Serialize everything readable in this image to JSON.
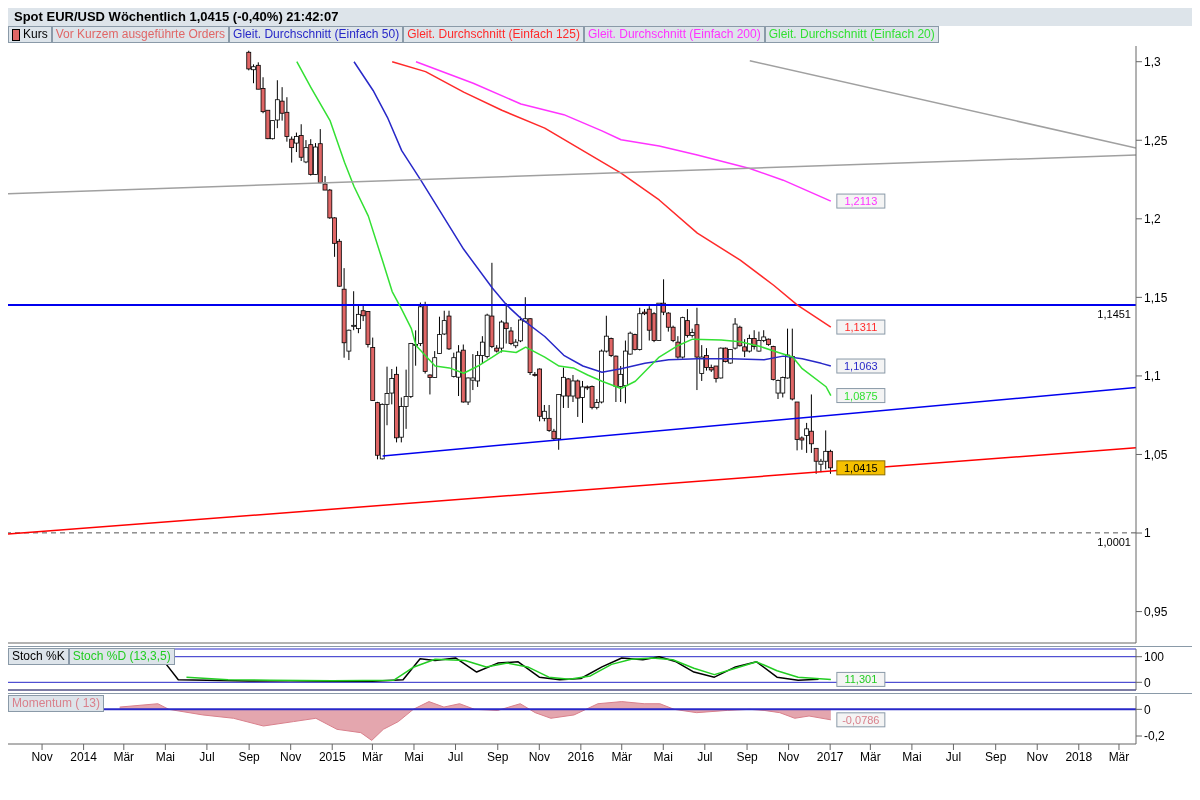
{
  "chart_data": [
    {
      "type": "candlestick",
      "title": "Spot EUR/USD   Wöchentlich   1,0415 (-0,40%)   21:42:07",
      "legend": "top left",
      "tick_labels": "y",
      "xlim": [
        "2013-09-12",
        "2018-03-26"
      ],
      "ylim": [
        0.93,
        1.31
      ],
      "yticks": [
        {
          "value": 0.95,
          "label": "0,95"
        },
        1,
        {
          "value": 1.05,
          "label": "1,05"
        },
        {
          "value": 1.1,
          "label": "1,1"
        },
        {
          "value": 1.15,
          "label": "1,15"
        },
        {
          "value": 1.2,
          "label": "1,2"
        },
        {
          "value": 1.25,
          "label": "1,25"
        },
        {
          "value": 1.3,
          "label": "1,3"
        }
      ],
      "ref_lines": [
        {
          "axis": "y",
          "value": 1.1451,
          "label": "1,1451",
          "color": "#0000ee"
        },
        {
          "axis": "y",
          "value": 1.0001,
          "label": "1,0001",
          "color": "#555555",
          "line_style": "dashed"
        }
      ],
      "annotations": [
        "Vor Kurzem ausgeführte Orders",
        {
          "text": "1,2113",
          "x": "2017-01-02",
          "y": 1.2113
        },
        {
          "text": "1,1311",
          "x": "2017-01-02",
          "y": 1.1311
        },
        {
          "text": "1,1063",
          "x": "2017-01-02",
          "y": 1.1063
        },
        {
          "text": "1,0875",
          "x": "2017-01-02",
          "y": 1.0875
        },
        {
          "text": "1,0415",
          "x": "2017-01-02",
          "y": 1.0415
        }
      ],
      "series": [
        {
          "name": "Kurs",
          "colors": [
            "#e06666",
            "#ffffff",
            "#e06666",
            "#e06666",
            "#e06666",
            "#ffffff",
            "#ffffff",
            "#e06666",
            "#e06666",
            "#e06666",
            "#ffffff",
            "#e06666",
            "#ffffff",
            "#e06666",
            "#ffffff",
            "#e06666",
            "#e06666",
            "#e06666",
            "#e06666",
            "#e06666",
            "#e06666",
            "#ffffff",
            "#ffffff",
            "#ffffff",
            "#e06666",
            "#e06666",
            "#e06666",
            "#e06666",
            "#ffffff",
            "#ffffff",
            "#ffffff",
            "#e06666",
            "#ffffff",
            "#ffffff",
            "#ffffff",
            "#ffffff",
            "#ffffff",
            "#e06666",
            "#e06666",
            "#ffffff",
            "#ffffff",
            "#ffffff",
            "#e06666",
            "#ffffff",
            "#ffffff",
            "#e06666",
            "#ffffff",
            "#ffffff",
            "#ffffff",
            "#ffffff",
            "#ffffff",
            "#e06666",
            "#e06666",
            "#ffffff",
            "#e06666",
            "#e06666",
            "#ffffff",
            "#ffffff",
            "#ffffff",
            "#e06666",
            "#e06666",
            "#e06666",
            "#ffffff",
            "#e06666",
            "#e06666",
            "#ffffff",
            "#ffffff",
            "#e06666",
            "#ffffff",
            "#e06666",
            "#ffffff",
            "#e06666",
            "#e06666",
            "#ffffff",
            "#ffffff",
            "#ffffff",
            "#e06666",
            "#e06666",
            "#ffffff",
            "#ffffff",
            "#ffffff",
            "#e06666",
            "#ffffff",
            "#e06666",
            "#e06666",
            "#e06666",
            "#ffffff",
            "#e06666",
            "#e06666",
            "#e06666",
            "#e06666",
            "#ffffff",
            "#e06666",
            "#ffffff",
            "#e06666",
            "#ffffff",
            "#e06666",
            "#e06666",
            "#e06666",
            "#ffffff",
            "#e06666",
            "#ffffff",
            "#ffffff",
            "#e06666",
            "#e06666",
            "#ffffff",
            "#e06666",
            "#ffffff",
            "#ffffff",
            "#e06666",
            "#e06666",
            "#ffffff",
            "#ffffff",
            "#ffffff",
            "#e06666",
            "#e06666",
            "#e06666",
            "#ffffff",
            "#e06666",
            "#e06666",
            "#ffffff",
            "#ffffff",
            "#e06666"
          ],
          "x": [
            "2014-09-01",
            "2014-09-08",
            "2014-09-15",
            "2014-09-22",
            "2014-09-29",
            "2014-10-06",
            "2014-10-13",
            "2014-10-20",
            "2014-10-27",
            "2014-11-03",
            "2014-11-10",
            "2014-11-17",
            "2014-11-24",
            "2014-12-01",
            "2014-12-08",
            "2014-12-15",
            "2014-12-22",
            "2014-12-29",
            "2015-01-05",
            "2015-01-12",
            "2015-01-19",
            "2015-01-26",
            "2015-02-02",
            "2015-02-09",
            "2015-02-16",
            "2015-02-23",
            "2015-03-02",
            "2015-03-09",
            "2015-03-16",
            "2015-03-23",
            "2015-03-30",
            "2015-04-06",
            "2015-04-13",
            "2015-04-20",
            "2015-04-27",
            "2015-05-04",
            "2015-05-11",
            "2015-05-18",
            "2015-05-25",
            "2015-06-01",
            "2015-06-08",
            "2015-06-15",
            "2015-06-22",
            "2015-06-29",
            "2015-07-06",
            "2015-07-13",
            "2015-07-20",
            "2015-07-27",
            "2015-08-03",
            "2015-08-10",
            "2015-08-17",
            "2015-08-24",
            "2015-08-31",
            "2015-09-07",
            "2015-09-14",
            "2015-09-21",
            "2015-09-28",
            "2015-10-05",
            "2015-10-12",
            "2015-10-19",
            "2015-10-26",
            "2015-11-02",
            "2015-11-09",
            "2015-11-16",
            "2015-11-23",
            "2015-11-30",
            "2015-12-07",
            "2015-12-14",
            "2015-12-21",
            "2015-12-28",
            "2016-01-04",
            "2016-01-11",
            "2016-01-18",
            "2016-01-25",
            "2016-02-01",
            "2016-02-08",
            "2016-02-15",
            "2016-02-22",
            "2016-02-29",
            "2016-03-07",
            "2016-03-14",
            "2016-03-21",
            "2016-03-28",
            "2016-04-04",
            "2016-04-11",
            "2016-04-18",
            "2016-04-25",
            "2016-05-02",
            "2016-05-09",
            "2016-05-16",
            "2016-05-23",
            "2016-05-30",
            "2016-06-06",
            "2016-06-13",
            "2016-06-20",
            "2016-06-27",
            "2016-07-04",
            "2016-07-11",
            "2016-07-18",
            "2016-07-25",
            "2016-08-01",
            "2016-08-08",
            "2016-08-15",
            "2016-08-22",
            "2016-08-29",
            "2016-09-05",
            "2016-09-12",
            "2016-09-19",
            "2016-09-26",
            "2016-10-03",
            "2016-10-10",
            "2016-10-17",
            "2016-10-24",
            "2016-10-31",
            "2016-11-07",
            "2016-11-14",
            "2016-11-21",
            "2016-11-28",
            "2016-12-05",
            "2016-12-12",
            "2016-12-19",
            "2016-12-26",
            "2017-01-02"
          ],
          "ohlc": [
            [
              1.306,
              1.307,
              1.2945,
              1.2954
            ],
            [
              1.2949,
              1.2983,
              1.2863,
              1.2968
            ],
            [
              1.2977,
              1.2996,
              1.2825,
              1.2825
            ],
            [
              1.283,
              1.2901,
              1.2672,
              1.2682
            ],
            [
              1.2691,
              1.2691,
              1.2507,
              1.251
            ],
            [
              1.251,
              1.2625,
              1.2505,
              1.2625
            ],
            [
              1.2629,
              1.2882,
              1.2577,
              1.2758
            ],
            [
              1.2749,
              1.2838,
              1.2625,
              1.2672
            ],
            [
              1.2678,
              1.2774,
              1.2491,
              1.2524
            ],
            [
              1.2507,
              1.2524,
              1.2358,
              1.2453
            ],
            [
              1.2482,
              1.2549,
              1.2425,
              1.2524
            ],
            [
              1.253,
              1.2602,
              1.2368,
              1.2392
            ],
            [
              1.2362,
              1.2501,
              1.2354,
              1.2453
            ],
            [
              1.2472,
              1.2507,
              1.2275,
              1.2282
            ],
            [
              1.2282,
              1.2482,
              1.228,
              1.2457
            ],
            [
              1.2478,
              1.2571,
              1.2226,
              1.223
            ],
            [
              1.2221,
              1.2272,
              1.2183,
              1.2183
            ],
            [
              1.2183,
              1.219,
              1.2,
              1.2006
            ],
            [
              1.2006,
              1.201,
              1.1758,
              1.1844
            ],
            [
              1.1857,
              1.1872,
              1.1568,
              1.1571
            ],
            [
              1.1552,
              1.1686,
              1.1116,
              1.1211
            ],
            [
              1.1158,
              1.1295,
              1.1101,
              1.1291
            ],
            [
              1.1316,
              1.1539,
              1.1291,
              1.1322
            ],
            [
              1.1301,
              1.1453,
              1.1272,
              1.1392
            ],
            [
              1.1415,
              1.1453,
              1.1349,
              1.1383
            ],
            [
              1.141,
              1.1412,
              1.1181,
              1.12
            ],
            [
              1.1181,
              1.1244,
              1.0844,
              1.0844
            ],
            [
              1.083,
              1.0835,
              1.0469,
              1.0495
            ],
            [
              1.0472,
              1.0825,
              1.0468,
              1.0819
            ],
            [
              1.0819,
              1.1059,
              1.0686,
              1.0888
            ],
            [
              1.0891,
              1.1044,
              1.0819,
              1.0983
            ],
            [
              1.101,
              1.1059,
              1.0577,
              1.0606
            ],
            [
              1.061,
              1.0863,
              1.0577,
              1.0806
            ],
            [
              1.0806,
              1.104,
              1.0663,
              1.0869
            ],
            [
              1.0869,
              1.121,
              1.0859,
              1.1206
            ],
            [
              1.12,
              1.129,
              1.1065,
              1.12
            ],
            [
              1.1206,
              1.1467,
              1.119,
              1.144
            ],
            [
              1.1448,
              1.1472,
              1.1015,
              1.1029
            ],
            [
              1.1006,
              1.101,
              1.0882,
              1.099
            ],
            [
              1.099,
              1.1158,
              1.0988,
              1.1116
            ],
            [
              1.1143,
              1.1377,
              1.114,
              1.1263
            ],
            [
              1.1267,
              1.1415,
              1.126,
              1.1352
            ],
            [
              1.1381,
              1.1415,
              1.1165,
              1.1172
            ],
            [
              1.0996,
              1.1148,
              1.099,
              1.1116
            ],
            [
              1.0992,
              1.1196,
              1.0872,
              1.1152
            ],
            [
              1.1164,
              1.12,
              1.083,
              1.0834
            ],
            [
              1.0834,
              1.099,
              1.0815,
              1.0987
            ],
            [
              1.0973,
              1.1139,
              1.091,
              1.0987
            ],
            [
              1.0968,
              1.1158,
              1.093,
              1.113
            ],
            [
              1.113,
              1.1253,
              1.1082,
              1.1215
            ],
            [
              1.1124,
              1.1396,
              1.1111,
              1.1387
            ],
            [
              1.1381,
              1.172,
              1.1177,
              1.1187
            ],
            [
              1.1177,
              1.1196,
              1.1149,
              1.1158
            ],
            [
              1.1177,
              1.1354,
              1.1149,
              1.1343
            ],
            [
              1.1337,
              1.1463,
              1.1206,
              1.1301
            ],
            [
              1.1286,
              1.1311,
              1.1196,
              1.1206
            ],
            [
              1.1192,
              1.1234,
              1.1177,
              1.1215
            ],
            [
              1.1223,
              1.1377,
              1.1215,
              1.1356
            ],
            [
              1.1348,
              1.1501,
              1.134,
              1.1364
            ],
            [
              1.1364,
              1.1368,
              1.1006,
              1.1021
            ],
            [
              1.101,
              1.1025,
              1.0996,
              1.1006
            ],
            [
              1.1044,
              1.1048,
              1.0711,
              1.0743
            ],
            [
              1.073,
              1.0815,
              1.0711,
              1.0775
            ],
            [
              1.073,
              1.0815,
              1.0644,
              1.0653
            ],
            [
              1.0648,
              1.0663,
              1.0587,
              1.06
            ],
            [
              1.06,
              1.0882,
              1.053,
              1.0882
            ],
            [
              1.0872,
              1.1053,
              1.0796,
              1.0991
            ],
            [
              1.0981,
              1.0987,
              1.0796,
              1.0872
            ],
            [
              1.0872,
              1.1006,
              1.0834,
              1.0968
            ],
            [
              1.0968,
              1.0977,
              1.0739,
              1.0859
            ],
            [
              1.0863,
              1.0968,
              1.0701,
              1.093
            ],
            [
              1.093,
              1.0939,
              1.091,
              1.0924
            ],
            [
              1.0933,
              1.0939,
              1.0787,
              1.08
            ],
            [
              1.08,
              1.0853,
              1.0787,
              1.0831
            ],
            [
              1.0834,
              1.1168,
              1.0825,
              1.1158
            ],
            [
              1.1158,
              1.1383,
              1.1149,
              1.1253
            ],
            [
              1.1238,
              1.1244,
              1.112,
              1.113
            ],
            [
              1.1126,
              1.113,
              1.0834,
              1.0933
            ],
            [
              1.0933,
              1.1063,
              1.0834,
              1.101
            ],
            [
              1.0939,
              1.1225,
              1.0825,
              1.1158
            ],
            [
              1.1139,
              1.1282,
              1.1135,
              1.1272
            ],
            [
              1.1263,
              1.1269,
              1.1162,
              1.1168
            ],
            [
              1.1168,
              1.1434,
              1.1162,
              1.1396
            ],
            [
              1.1406,
              1.1425,
              1.1387,
              1.1396
            ],
            [
              1.1425,
              1.1444,
              1.1225,
              1.1291
            ],
            [
              1.1396,
              1.1406,
              1.1215,
              1.1225
            ],
            [
              1.1225,
              1.1463,
              1.1225,
              1.1463
            ],
            [
              1.1463,
              1.1615,
              1.1387,
              1.1406
            ],
            [
              1.14,
              1.1406,
              1.1282,
              1.131
            ],
            [
              1.131,
              1.132,
              1.1215,
              1.1225
            ],
            [
              1.1215,
              1.1253,
              1.111,
              1.112
            ],
            [
              1.112,
              1.1377,
              1.111,
              1.1371
            ],
            [
              1.1352,
              1.1425,
              1.1244,
              1.1257
            ],
            [
              1.1257,
              1.1301,
              1.1244,
              1.1276
            ],
            [
              1.1326,
              1.1434,
              1.091,
              1.112
            ],
            [
              1.1015,
              1.1196,
              1.0968,
              1.112
            ],
            [
              1.113,
              1.1177,
              1.1034,
              1.1053
            ],
            [
              1.1053,
              1.1072,
              1.1025,
              1.1038
            ],
            [
              1.1063,
              1.1063,
              1.0958,
              1.0983
            ],
            [
              1.0987,
              1.1181,
              1.0983,
              1.1177
            ],
            [
              1.1177,
              1.1181,
              1.1086,
              1.1091
            ],
            [
              1.1082,
              1.1168,
              1.1078,
              1.1168
            ],
            [
              1.1177,
              1.1368,
              1.1168,
              1.133
            ],
            [
              1.131,
              1.132,
              1.1187,
              1.1192
            ],
            [
              1.1185,
              1.1234,
              1.112,
              1.1158
            ],
            [
              1.1158,
              1.1263,
              1.1149,
              1.1238
            ],
            [
              1.1238,
              1.1291,
              1.1168,
              1.1187
            ],
            [
              1.1158,
              1.1282,
              1.1154,
              1.1225
            ],
            [
              1.1225,
              1.1291,
              1.1215,
              1.1248
            ],
            [
              1.1234,
              1.1238,
              1.1192,
              1.12
            ],
            [
              1.1187,
              1.1192,
              1.0971,
              1.0977
            ],
            [
              1.0891,
              1.0977,
              1.0853,
              1.0971
            ],
            [
              1.0891,
              1.0996,
              1.0863,
              1.099
            ],
            [
              1.0987,
              1.1301,
              1.0983,
              1.1133
            ],
            [
              1.1124,
              1.1301,
              1.0844,
              1.0853
            ],
            [
              1.0834,
              1.0834,
              1.0526,
              1.0596
            ],
            [
              1.0605,
              1.0615,
              1.053,
              1.0592
            ],
            [
              1.0621,
              1.0701,
              1.051,
              1.0663
            ],
            [
              1.0648,
              1.0882,
              1.051,
              1.0568
            ],
            [
              1.0539,
              1.0539,
              1.0377,
              1.0457
            ],
            [
              1.0438,
              1.0472,
              1.0387,
              1.0457
            ],
            [
              1.0457,
              1.0653,
              1.0406,
              1.052
            ],
            [
              1.052,
              1.053,
              1.0377,
              1.0415
            ]
          ]
        },
        {
          "type": "line",
          "name": "Gleit. Durchschnitt (Einfach 50)",
          "color": "#2828c8",
          "x": [
            "2015-02-02",
            "2015-03-02",
            "2015-03-23",
            "2015-04-13",
            "2015-05-11",
            "2015-06-08",
            "2015-07-13",
            "2015-08-24",
            "2015-09-14",
            "2015-10-05",
            "2015-11-09",
            "2015-12-07",
            "2016-01-04",
            "2016-02-01",
            "2016-02-29",
            "2016-04-04",
            "2016-05-09",
            "2016-06-20",
            "2016-08-08",
            "2016-09-26",
            "2016-10-24",
            "2016-11-21",
            "2016-12-19",
            "2017-01-02"
          ],
          "values": [
            1.3,
            1.2817,
            1.2646,
            1.2434,
            1.2246,
            1.2051,
            1.1806,
            1.156,
            1.1451,
            1.1366,
            1.1251,
            1.1131,
            1.1063,
            1.1023,
            1.1046,
            1.108,
            1.1103,
            1.1109,
            1.1109,
            1.1103,
            1.1126,
            1.1109,
            1.108,
            1.1063
          ]
        },
        {
          "type": "line",
          "name": "Gleit. Durchschnitt (Einfach 125)",
          "color": "#ff2a2a",
          "x": [
            "2015-03-30",
            "2015-05-18",
            "2015-07-13",
            "2015-09-07",
            "2015-11-09",
            "2016-01-04",
            "2016-02-29",
            "2016-04-25",
            "2016-06-20",
            "2016-08-22",
            "2016-10-10",
            "2016-11-14",
            "2017-01-02"
          ],
          "values": [
            1.3,
            1.2937,
            1.2806,
            1.2691,
            1.2577,
            1.2434,
            1.2291,
            1.212,
            1.1909,
            1.1737,
            1.1577,
            1.1451,
            1.1311
          ]
        },
        {
          "type": "line",
          "name": "Gleit. Durchschnitt (Einfach 200)",
          "color": "#ff33ff",
          "x": [
            "2015-05-04",
            "2015-07-27",
            "2015-10-05",
            "2015-12-07",
            "2016-02-01",
            "2016-02-29",
            "2016-04-25",
            "2016-06-20",
            "2016-09-05",
            "2016-10-24",
            "2017-01-02"
          ],
          "values": [
            1.3,
            1.2863,
            1.2731,
            1.2663,
            1.256,
            1.2503,
            1.2463,
            1.2406,
            1.232,
            1.2246,
            1.2113
          ]
        },
        {
          "type": "line",
          "name": "Gleit. Durchschnitt (Einfach 20)",
          "color": "#33e033",
          "x": [
            "2014-11-10",
            "2014-12-01",
            "2014-12-29",
            "2015-01-19",
            "2015-02-02",
            "2015-02-23",
            "2015-03-16",
            "2015-03-30",
            "2015-04-13",
            "2015-04-27",
            "2015-05-04",
            "2015-06-01",
            "2015-06-22",
            "2015-07-13",
            "2015-08-03",
            "2015-08-24",
            "2015-09-07",
            "2015-09-28",
            "2015-10-12",
            "2015-11-09",
            "2015-11-30",
            "2015-12-21",
            "2016-01-11",
            "2016-02-01",
            "2016-02-29",
            "2016-03-21",
            "2016-04-25",
            "2016-05-23",
            "2016-06-13",
            "2016-07-25",
            "2016-08-22",
            "2016-09-19",
            "2016-10-17",
            "2016-11-07",
            "2016-11-21",
            "2016-12-26",
            "2017-01-02"
          ],
          "values": [
            1.3,
            1.2834,
            1.2623,
            1.236,
            1.2206,
            1.2017,
            1.1731,
            1.1537,
            1.1423,
            1.1303,
            1.1194,
            1.1063,
            1.1051,
            1.1017,
            1.1063,
            1.112,
            1.116,
            1.1149,
            1.1183,
            1.112,
            1.1063,
            1.1051,
            1.1006,
            1.0966,
            1.092,
            1.0966,
            1.112,
            1.1194,
            1.1234,
            1.1229,
            1.1217,
            1.1189,
            1.1149,
            1.112,
            1.1046,
            1.0931,
            1.0875
          ]
        },
        {
          "type": "line",
          "color": "#a0a0a0",
          "x": [
            "2013-09-12",
            "2018-03-26"
          ],
          "values": [
            1.216,
            1.2406
          ]
        },
        {
          "type": "line",
          "color": "#a0a0a0",
          "x": [
            "2016-09-05",
            "2018-03-26"
          ],
          "values": [
            1.3006,
            1.2451
          ]
        },
        {
          "type": "line",
          "color": "#0000ee",
          "x": [
            "2015-03-16",
            "2018-03-26"
          ],
          "values": [
            1.0491,
            1.0926
          ]
        },
        {
          "type": "line",
          "color": "#ff0000",
          "x": [
            "2013-09-12",
            "2018-03-26"
          ],
          "values": [
            0.9994,
            1.0543
          ]
        }
      ]
    },
    {
      "type": "line",
      "legend": "top left",
      "tick_labels": "y",
      "grid": "y",
      "xlim": [
        "2013-09-12",
        "2018-03-26"
      ],
      "ylim": [
        -30,
        130
      ],
      "yticks": [
        0,
        100
      ],
      "annotations": [
        {
          "text": "11,301",
          "x": "2017-01-02",
          "y": 11.301
        }
      ],
      "series": [
        {
          "name": "Stoch %K",
          "color": "#000000",
          "x": [
            "2014-05-01",
            "2014-05-20",
            "2014-07-01",
            "2014-09-01",
            "2014-11-01",
            "2015-01-01",
            "2015-03-01",
            "2015-04-15",
            "2015-05-10",
            "2015-06-01",
            "2015-07-01",
            "2015-08-01",
            "2015-09-01",
            "2015-10-01",
            "2015-11-01",
            "2015-12-01",
            "2016-01-01",
            "2016-02-01",
            "2016-03-01",
            "2016-04-01",
            "2016-04-25",
            "2016-05-20",
            "2016-06-15",
            "2016-07-15",
            "2016-08-15",
            "2016-09-15",
            "2016-10-15",
            "2016-11-15",
            "2016-12-15"
          ],
          "values": [
            75,
            10,
            8,
            5,
            6,
            4,
            4,
            10,
            92,
            85,
            95,
            40,
            75,
            80,
            20,
            10,
            15,
            60,
            95,
            88,
            100,
            80,
            40,
            20,
            60,
            80,
            20,
            8,
            12
          ]
        },
        {
          "name": "Stoch %D (13,3,5)",
          "color": "#22cc22",
          "x": [
            "2014-06-01",
            "2014-08-01",
            "2014-10-01",
            "2015-01-01",
            "2015-04-01",
            "2015-05-01",
            "2015-06-01",
            "2015-07-15",
            "2015-08-15",
            "2015-09-15",
            "2015-10-15",
            "2015-11-15",
            "2015-12-15",
            "2016-01-15",
            "2016-02-15",
            "2016-03-15",
            "2016-04-15",
            "2016-05-15",
            "2016-06-15",
            "2016-07-15",
            "2016-08-15",
            "2016-09-15",
            "2016-10-15",
            "2016-11-15",
            "2017-01-02"
          ],
          "values": [
            20,
            10,
            8,
            6,
            8,
            60,
            90,
            85,
            60,
            75,
            60,
            20,
            12,
            25,
            70,
            90,
            95,
            88,
            55,
            30,
            55,
            80,
            45,
            20,
            11.301
          ]
        }
      ]
    },
    {
      "type": "area",
      "legend": "top left",
      "ref_lines": [
        {
          "axis": "y",
          "value": 0,
          "color": "#2828c8"
        }
      ],
      "xlim": [
        "2013-09-12",
        "2018-03-26"
      ],
      "xticks": [
        {
          "value": "2013-11-01",
          "label": "Nov"
        },
        {
          "value": "2014-01-01",
          "label": "2014"
        },
        {
          "value": "2014-03-01",
          "label": "Mär"
        },
        {
          "value": "2014-05-01",
          "label": "Mai"
        },
        {
          "value": "2014-07-01",
          "label": "Jul"
        },
        {
          "value": "2014-09-01",
          "label": "Sep"
        },
        {
          "value": "2014-11-01",
          "label": "Nov"
        },
        {
          "value": "2015-01-01",
          "label": "2015"
        },
        {
          "value": "2015-03-01",
          "label": "Mär"
        },
        {
          "value": "2015-05-01",
          "label": "Mai"
        },
        {
          "value": "2015-07-01",
          "label": "Jul"
        },
        {
          "value": "2015-09-01",
          "label": "Sep"
        },
        {
          "value": "2015-11-01",
          "label": "Nov"
        },
        {
          "value": "2016-01-01",
          "label": "2016"
        },
        {
          "value": "2016-03-01",
          "label": "Mär"
        },
        {
          "value": "2016-05-01",
          "label": "Mai"
        },
        {
          "value": "2016-07-01",
          "label": "Jul"
        },
        {
          "value": "2016-09-01",
          "label": "Sep"
        },
        {
          "value": "2016-11-01",
          "label": "Nov"
        },
        {
          "value": "2017-01-01",
          "label": "2017"
        },
        {
          "value": "2017-03-01",
          "label": "Mär"
        },
        {
          "value": "2017-05-01",
          "label": "Mai"
        },
        {
          "value": "2017-07-01",
          "label": "Jul"
        },
        {
          "value": "2017-09-01",
          "label": "Sep"
        },
        {
          "value": "2017-11-01",
          "label": "Nov"
        },
        {
          "value": "2018-01-01",
          "label": "2018"
        },
        {
          "value": "2018-03-01",
          "label": "Mär"
        }
      ],
      "ylim": [
        -0.26,
        0.1
      ],
      "yticks": [
        0,
        {
          "value": -0.2,
          "label": "-0,2"
        }
      ],
      "annotations": [
        {
          "text": "-0,0786",
          "x": "2017-01-02",
          "y": -0.0786
        }
      ],
      "series": [
        {
          "name": "Momentum ( 13)",
          "color": "#d9808c",
          "x": [
            "2014-02-23",
            "2014-04-20",
            "2014-05-06",
            "2014-06-25",
            "2014-08-09",
            "2014-09-22",
            "2014-11-05",
            "2014-12-08",
            "2015-01-08",
            "2015-02-12",
            "2015-02-28",
            "2015-03-17",
            "2015-04-08",
            "2015-04-30",
            "2015-05-23",
            "2015-06-14",
            "2015-07-07",
            "2015-07-29",
            "2015-09-01",
            "2015-10-04",
            "2015-10-26",
            "2015-11-18",
            "2015-12-22",
            "2016-01-26",
            "2016-03-01",
            "2016-04-03",
            "2016-04-26",
            "2016-05-17",
            "2016-06-19",
            "2016-08-03",
            "2016-09-05",
            "2016-09-26",
            "2016-10-19",
            "2016-11-10",
            "2016-12-01",
            "2017-01-02"
          ],
          "values": [
            0.017,
            0.042,
            0,
            -0.042,
            -0.067,
            -0.125,
            -0.092,
            -0.067,
            -0.15,
            -0.175,
            -0.233,
            -0.15,
            -0.092,
            0,
            0.058,
            0.017,
            0.042,
            0,
            -0.008,
            0.042,
            -0.025,
            -0.067,
            -0.042,
            0.042,
            0.058,
            0.042,
            0.042,
            0,
            -0.025,
            -0.008,
            0,
            -0.008,
            -0.025,
            -0.067,
            -0.05,
            -0.0786
          ]
        }
      ]
    }
  ]
}
